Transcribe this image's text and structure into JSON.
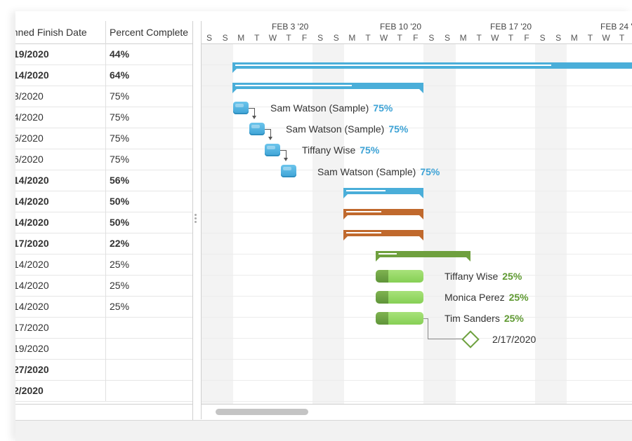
{
  "left_grid": {
    "headers": [
      "anned Finish Date",
      "Percent Complete"
    ],
    "rows": [
      {
        "finish": "19/2020",
        "pct": "44%",
        "bold": true
      },
      {
        "finish": "14/2020",
        "pct": "64%",
        "bold": true
      },
      {
        "finish": "3/2020",
        "pct": "75%",
        "bold": false
      },
      {
        "finish": "4/2020",
        "pct": "75%",
        "bold": false
      },
      {
        "finish": "5/2020",
        "pct": "75%",
        "bold": false
      },
      {
        "finish": "6/2020",
        "pct": "75%",
        "bold": false
      },
      {
        "finish": "14/2020",
        "pct": "56%",
        "bold": true
      },
      {
        "finish": "14/2020",
        "pct": "50%",
        "bold": true
      },
      {
        "finish": "14/2020",
        "pct": "50%",
        "bold": true
      },
      {
        "finish": "17/2020",
        "pct": "22%",
        "bold": true
      },
      {
        "finish": "14/2020",
        "pct": "25%",
        "bold": false
      },
      {
        "finish": "14/2020",
        "pct": "25%",
        "bold": false
      },
      {
        "finish": "14/2020",
        "pct": "25%",
        "bold": false
      },
      {
        "finish": "17/2020",
        "pct": "",
        "bold": false
      },
      {
        "finish": "19/2020",
        "pct": "",
        "bold": false
      },
      {
        "finish": "27/2020",
        "pct": "",
        "bold": true
      },
      {
        "finish": "2/2020",
        "pct": "",
        "bold": true
      }
    ]
  },
  "timeline": {
    "weeks": [
      "FEB 3 '20",
      "FEB 10 '20",
      "FEB 17 '20",
      "FEB 24 '"
    ],
    "days": [
      "S",
      "S",
      "M",
      "T",
      "W",
      "T",
      "F",
      "S",
      "S",
      "M",
      "T",
      "W",
      "T",
      "F",
      "S",
      "S",
      "M",
      "T",
      "W",
      "T",
      "F",
      "S",
      "S",
      "M",
      "T",
      "W",
      "T"
    ]
  },
  "tasks": [
    {
      "resource": "Sam Watson (Sample)",
      "pct": "75%"
    },
    {
      "resource": "Sam Watson (Sample)",
      "pct": "75%"
    },
    {
      "resource": "Tiffany Wise",
      "pct": "75%"
    },
    {
      "resource": "Sam Watson (Sample)",
      "pct": "75%"
    },
    {
      "resource": "Tiffany Wise",
      "pct": "25%"
    },
    {
      "resource": "Monica Perez",
      "pct": "25%"
    },
    {
      "resource": "Tim Sanders",
      "pct": "25%"
    }
  ],
  "milestone": {
    "date": "2/17/2020"
  },
  "colors": {
    "blue": "#4aaed9",
    "orange": "#c0692d",
    "green": "#6fa03e"
  }
}
